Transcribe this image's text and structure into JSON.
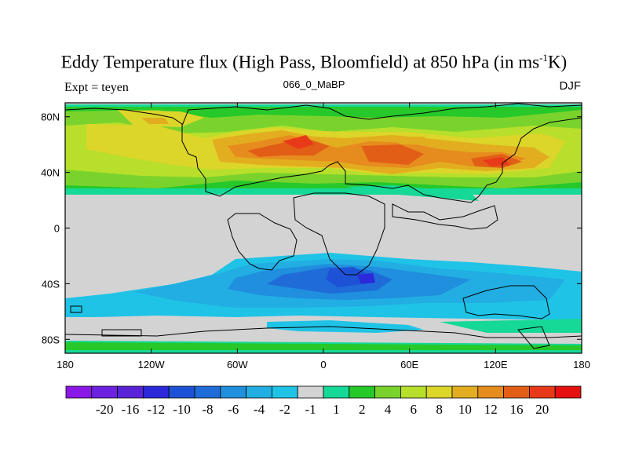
{
  "title": {
    "main": "Eddy Temperature flux (High Pass, Bloomfield) at 850 hPa (in ms",
    "sup": "-1",
    "end": "K)"
  },
  "subtitle": "066_0_MaBP",
  "expt_label": "Expt = teyen",
  "season": "DJF",
  "axes": {
    "lon_ticks": [
      "180",
      "120W",
      "60W",
      "0",
      "60E",
      "120E",
      "180"
    ],
    "lat_ticks": [
      "80N",
      "40N",
      "0",
      "40S",
      "80S"
    ]
  },
  "colorbar": {
    "colors": [
      "#8a18e6",
      "#6c22e0",
      "#5a22d6",
      "#2b29d9",
      "#1e52d6",
      "#1f6cd8",
      "#1f8fde",
      "#22aee2",
      "#1fc3e6",
      "#d3d3d3",
      "#16d897",
      "#26c82a",
      "#7ad32c",
      "#b7df2b",
      "#dcd52a",
      "#e2ae1f",
      "#e68c1e",
      "#e25e17",
      "#e83a18",
      "#e51010"
    ],
    "labels": [
      "-20",
      "-16",
      "-12",
      "-10",
      "-8",
      "-6",
      "-4",
      "-2",
      "-1",
      "1",
      "2",
      "4",
      "6",
      "8",
      "10",
      "12",
      "16",
      "20"
    ]
  }
}
